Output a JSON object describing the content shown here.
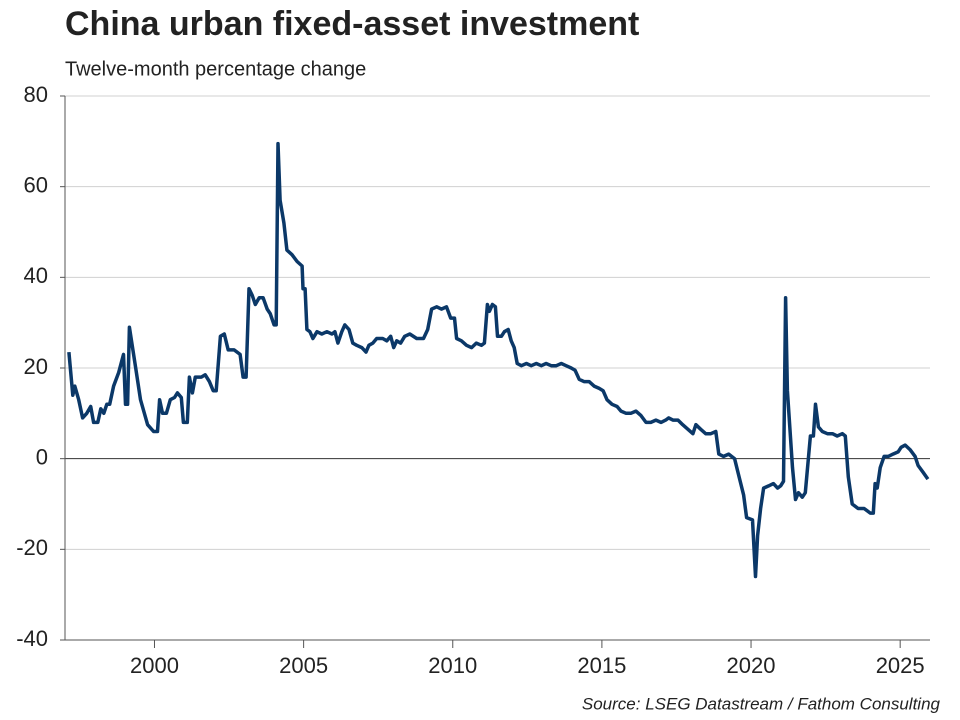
{
  "chart_data": {
    "type": "line",
    "title": "China urban fixed-asset investment",
    "subtitle": "Twelve-month percentage change",
    "source": "Source: LSEG Datastream / Fathom Consulting",
    "xlim": [
      1997,
      2026
    ],
    "xticks": [
      2000,
      2005,
      2010,
      2015,
      2020,
      2025
    ],
    "ylim": [
      -40,
      80
    ],
    "yticks": [
      -40,
      -20,
      0,
      20,
      40,
      60,
      80
    ],
    "grid": true,
    "series": [
      {
        "color": "#0b3868",
        "x": [
          1997.13,
          1997.26,
          1997.33,
          1997.46,
          1997.59,
          1997.73,
          1997.86,
          1997.96,
          1998.1,
          1998.2,
          1998.3,
          1998.4,
          1998.5,
          1998.63,
          1998.8,
          1998.96,
          1999.03,
          1999.1,
          1999.16,
          1999.37,
          1999.53,
          1999.77,
          1999.97,
          2000.1,
          2000.17,
          2000.27,
          2000.4,
          2000.53,
          2000.67,
          2000.77,
          2000.9,
          2000.97,
          2001.1,
          2001.17,
          2001.27,
          2001.37,
          2001.57,
          2001.7,
          2001.84,
          2001.97,
          2002.07,
          2002.21,
          2002.34,
          2002.47,
          2002.67,
          2002.87,
          2002.97,
          2003.07,
          2003.17,
          2003.28,
          2003.38,
          2003.51,
          2003.64,
          2003.78,
          2003.88,
          2004.01,
          2004.08,
          2004.14,
          2004.21,
          2004.34,
          2004.44,
          2004.61,
          2004.78,
          2004.95,
          2004.98,
          2005.05,
          2005.11,
          2005.21,
          2005.31,
          2005.45,
          2005.61,
          2005.78,
          2005.95,
          2006.05,
          2006.15,
          2006.28,
          2006.38,
          2006.52,
          2006.65,
          2006.78,
          2006.95,
          2007.09,
          2007.19,
          2007.32,
          2007.45,
          2007.65,
          2007.79,
          2007.92,
          2008.02,
          2008.12,
          2008.25,
          2008.39,
          2008.56,
          2008.79,
          2009.02,
          2009.16,
          2009.29,
          2009.46,
          2009.62,
          2009.79,
          2009.93,
          2010.06,
          2010.13,
          2010.29,
          2010.46,
          2010.63,
          2010.79,
          2010.96,
          2011.06,
          2011.16,
          2011.23,
          2011.33,
          2011.43,
          2011.5,
          2011.63,
          2011.73,
          2011.86,
          2011.96,
          2012.06,
          2012.16,
          2012.3,
          2012.47,
          2012.63,
          2012.8,
          2012.97,
          2013.13,
          2013.3,
          2013.47,
          2013.64,
          2013.8,
          2013.97,
          2014.1,
          2014.24,
          2014.4,
          2014.57,
          2014.74,
          2014.91,
          2015.04,
          2015.17,
          2015.34,
          2015.51,
          2015.64,
          2015.81,
          2015.97,
          2016.14,
          2016.31,
          2016.48,
          2016.64,
          2016.81,
          2016.98,
          2017.14,
          2017.24,
          2017.38,
          2017.55,
          2017.71,
          2017.88,
          2018.05,
          2018.15,
          2018.31,
          2018.48,
          2018.65,
          2018.82,
          2018.92,
          2019.08,
          2019.25,
          2019.45,
          2019.58,
          2019.75,
          2019.85,
          2020.05,
          2020.15,
          2020.22,
          2020.32,
          2020.42,
          2020.59,
          2020.75,
          2020.89,
          2020.99,
          2021.09,
          2021.16,
          2021.22,
          2021.32,
          2021.39,
          2021.49,
          2021.59,
          2021.72,
          2021.82,
          2021.99,
          2022.09,
          2022.16,
          2022.26,
          2022.39,
          2022.56,
          2022.73,
          2022.89,
          2023.06,
          2023.16,
          2023.26,
          2023.39,
          2023.59,
          2023.79,
          2024.0,
          2024.1,
          2024.16,
          2024.23,
          2024.33,
          2024.46,
          2024.6,
          2024.76,
          2024.93,
          2025.03,
          2025.17,
          2025.33,
          2025.5,
          2025.6,
          2025.77,
          2025.93
        ],
        "values": [
          23.5,
          14,
          16,
          13,
          9,
          10,
          11.5,
          8,
          8,
          11,
          10,
          12,
          12,
          16,
          19,
          23,
          12,
          12,
          29,
          20,
          13,
          7.5,
          6,
          6,
          13,
          10,
          10,
          13,
          13.5,
          14.5,
          13.5,
          8,
          8,
          18,
          14.5,
          18,
          18,
          18.5,
          17,
          15,
          15,
          27,
          27.5,
          24,
          24,
          23,
          18,
          18,
          37.5,
          36,
          34,
          35.5,
          35.5,
          33,
          32,
          29.5,
          29.5,
          69.5,
          57,
          52,
          46,
          45,
          43.5,
          42.5,
          37.5,
          37.5,
          28.5,
          28,
          26.5,
          28,
          27.5,
          28,
          27.5,
          28,
          25.5,
          28,
          29.5,
          28.5,
          25.5,
          25,
          24.5,
          23.5,
          25,
          25.5,
          26.5,
          26.5,
          26,
          27,
          24.5,
          26,
          25.5,
          27,
          27.5,
          26.5,
          26.5,
          28.5,
          33,
          33.5,
          33,
          33.5,
          31,
          31,
          26.5,
          26,
          25,
          24.5,
          25.5,
          25,
          25.5,
          34,
          32.5,
          34,
          33.5,
          27,
          27,
          28,
          28.5,
          26,
          24.5,
          21,
          20.5,
          21,
          20.5,
          21,
          20.5,
          21,
          20.5,
          20.5,
          21,
          20.5,
          20,
          19.5,
          17.5,
          17,
          17,
          16,
          15.5,
          15,
          13,
          12,
          11.5,
          10.5,
          10,
          10,
          10.5,
          9.5,
          8,
          8,
          8.5,
          8,
          8.5,
          9,
          8.5,
          8.5,
          7.5,
          6.5,
          5.5,
          7.5,
          6.5,
          5.5,
          5.5,
          6,
          1,
          0.5,
          1,
          0,
          -3.5,
          -8,
          -13,
          -13.5,
          -26,
          -17,
          -11,
          -6.5,
          -6,
          -5.5,
          -6.5,
          -6,
          -5,
          35.5,
          15,
          5,
          -2,
          -9,
          -7.5,
          -8.5,
          -7.5,
          5,
          5,
          12,
          7,
          6,
          5.5,
          5.5,
          5,
          5.5,
          5,
          -4,
          -10,
          -11,
          -11,
          -12,
          -12,
          -5.5,
          -6.5,
          -2,
          0.5,
          0.5,
          1,
          1.5,
          2.5,
          3,
          2,
          0.5,
          -1.5,
          -3,
          -4.5
        ]
      }
    ]
  }
}
